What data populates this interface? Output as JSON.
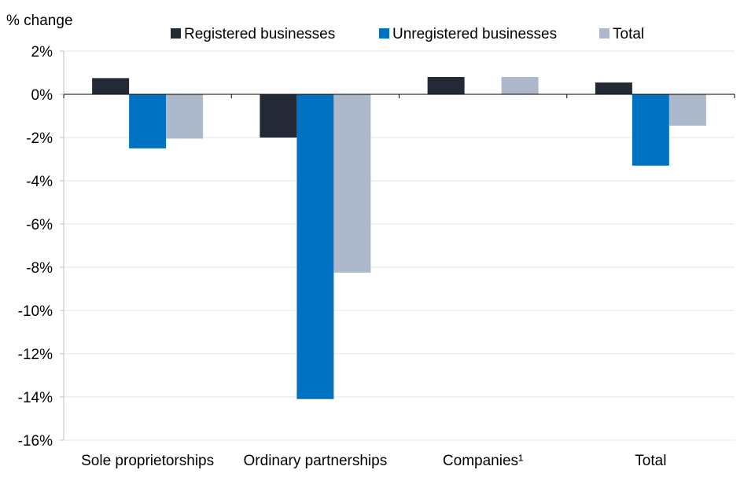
{
  "chart_data": {
    "type": "bar",
    "title": "",
    "ylabel": "% change",
    "xlabel": "",
    "ylim": [
      -16,
      2
    ],
    "ytick_step": 2,
    "categories": [
      "Sole proprietorships",
      "Ordinary partnerships",
      "Companies¹",
      "Total"
    ],
    "series": [
      {
        "name": "Registered businesses",
        "color": "#242a35",
        "values": [
          0.75,
          -2.0,
          0.8,
          0.55
        ]
      },
      {
        "name": "Unregistered businesses",
        "color": "#0070c0",
        "values": [
          -2.5,
          -14.1,
          null,
          -3.3
        ]
      },
      {
        "name": "Total",
        "color": "#adb9ca",
        "values": [
          -2.05,
          -8.25,
          0.8,
          -1.45
        ]
      }
    ],
    "grid": true,
    "legend_position": "top"
  }
}
